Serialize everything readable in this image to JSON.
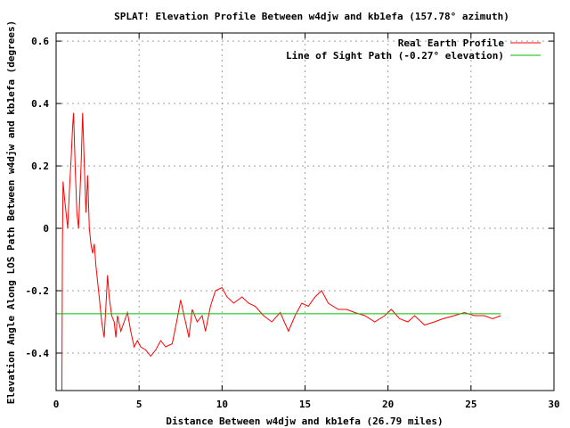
{
  "chart_data": {
    "type": "line",
    "title": "SPLAT! Elevation Profile Between w4djw and kb1efa (157.78° azimuth)",
    "xlabel": "Distance Between w4djw and kb1efa (26.79 miles)",
    "ylabel": "Elevation Angle Along LOS Path Between w4djw and kb1efa (degrees)",
    "xlim": [
      0,
      30
    ],
    "ylim": [
      -0.52,
      0.626
    ],
    "xticks": [
      0,
      5,
      10,
      15,
      20,
      25,
      30
    ],
    "xtick_labels": [
      "0",
      "5",
      "10",
      "15",
      "20",
      "25",
      "30"
    ],
    "yticks": [
      -0.4,
      -0.2,
      0,
      0.2,
      0.4,
      0.6
    ],
    "ytick_labels": [
      "-0.4",
      "-0.2",
      "0",
      "0.2",
      "0.4",
      "0.6"
    ],
    "grid": true,
    "legend_position": "top-right",
    "series": [
      {
        "name": "Real Earth Profile",
        "color": "#ff0000",
        "x": [
          0.35,
          0.38,
          0.42,
          0.5,
          0.6,
          0.7,
          0.8,
          0.9,
          1.0,
          1.05,
          1.15,
          1.25,
          1.35,
          1.5,
          1.6,
          1.7,
          1.8,
          1.9,
          2.0,
          2.1,
          2.2,
          2.3,
          2.4,
          2.6,
          2.75,
          2.9,
          3.0,
          3.1,
          3.2,
          3.35,
          3.5,
          3.6,
          3.7,
          3.9,
          4.1,
          4.3,
          4.4,
          4.5,
          4.7,
          4.9,
          5.1,
          5.4,
          5.7,
          6.0,
          6.3,
          6.6,
          7.0,
          7.3,
          7.5,
          7.8,
          8.0,
          8.2,
          8.5,
          8.8,
          9.0,
          9.3,
          9.6,
          10.0,
          10.3,
          10.7,
          11.2,
          11.6,
          12.0,
          12.5,
          13.0,
          13.5,
          14.0,
          14.4,
          14.8,
          15.2,
          15.6,
          16.0,
          16.4,
          17.0,
          17.5,
          18.0,
          18.6,
          19.2,
          19.8,
          20.2,
          20.7,
          21.2,
          21.6,
          22.2,
          22.8,
          23.3,
          24.0,
          24.6,
          25.2,
          25.8,
          26.3,
          26.79
        ],
        "y": [
          -0.52,
          -0.05,
          0.15,
          0.1,
          0.05,
          0.0,
          0.12,
          0.22,
          0.33,
          0.37,
          0.2,
          0.05,
          0.0,
          0.2,
          0.37,
          0.2,
          0.05,
          0.17,
          0.0,
          -0.05,
          -0.08,
          -0.05,
          -0.12,
          -0.22,
          -0.3,
          -0.35,
          -0.25,
          -0.15,
          -0.22,
          -0.28,
          -0.3,
          -0.35,
          -0.28,
          -0.33,
          -0.3,
          -0.27,
          -0.3,
          -0.33,
          -0.38,
          -0.36,
          -0.38,
          -0.39,
          -0.41,
          -0.39,
          -0.36,
          -0.38,
          -0.37,
          -0.29,
          -0.23,
          -0.3,
          -0.35,
          -0.26,
          -0.3,
          -0.28,
          -0.33,
          -0.25,
          -0.2,
          -0.19,
          -0.22,
          -0.24,
          -0.22,
          -0.24,
          -0.25,
          -0.28,
          -0.3,
          -0.27,
          -0.33,
          -0.28,
          -0.24,
          -0.25,
          -0.22,
          -0.2,
          -0.24,
          -0.26,
          -0.26,
          -0.27,
          -0.28,
          -0.3,
          -0.28,
          -0.26,
          -0.29,
          -0.3,
          -0.28,
          -0.31,
          -0.3,
          -0.29,
          -0.28,
          -0.27,
          -0.28,
          -0.28,
          -0.29,
          -0.28
        ]
      },
      {
        "name": "Line of Sight Path (-0.27° elevation)",
        "color": "#00c000",
        "x": [
          0,
          26.79
        ],
        "y": [
          -0.274,
          -0.274
        ]
      }
    ]
  }
}
